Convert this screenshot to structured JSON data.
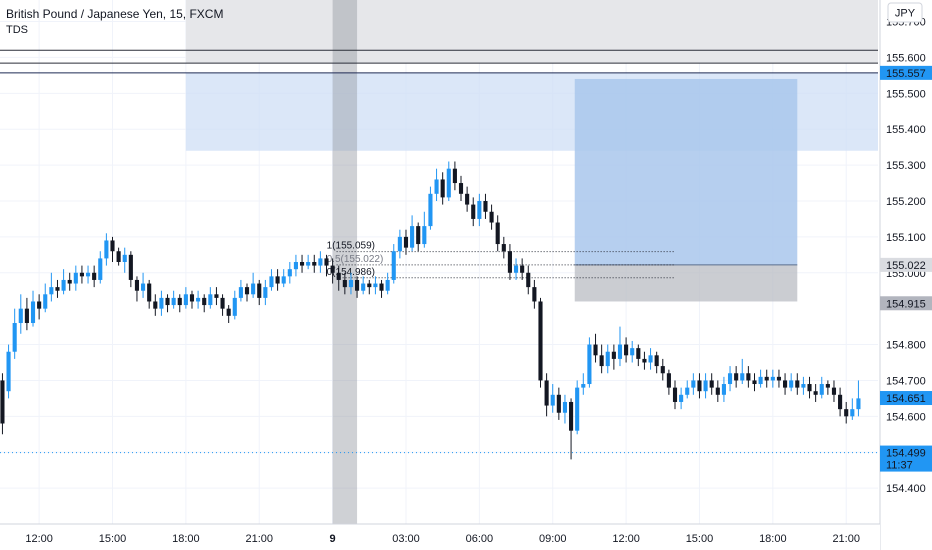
{
  "header": {
    "symbol_line": "British Pound / Japanese Yen, 15, FXCM",
    "indicator": "TDS"
  },
  "currency_button": "JPY",
  "colors": {
    "up": "#2196f3",
    "down": "#131722",
    "zone_fill": "#cfdff5",
    "target_fill": "#a9c7ec",
    "stop_fill": "#b9bcc3",
    "session_band": "#9598a1",
    "last_price_label": "#2196f3",
    "grid": "#f0f3fa"
  },
  "chart_data": {
    "type": "candlestick",
    "title": "British Pound / Japanese Yen, 15, FXCM",
    "y_axis": {
      "range": [
        154.3,
        155.76
      ],
      "ticks": [
        "154.400",
        "154.500",
        "154.600",
        "154.700",
        "154.800",
        "155.000",
        "155.100",
        "155.200",
        "155.300",
        "155.400",
        "155.500",
        "155.600",
        "155.700"
      ],
      "tick_values": [
        154.4,
        154.5,
        154.6,
        154.7,
        154.8,
        155.0,
        155.1,
        155.2,
        155.3,
        155.4,
        155.5,
        155.6,
        155.7
      ]
    },
    "x_axis": {
      "ticks": [
        "12:00",
        "15:00",
        "18:00",
        "21:00",
        "9",
        "03:00",
        "06:00",
        "09:00",
        "12:00",
        "15:00",
        "18:00",
        "21:00"
      ],
      "tick_positions": [
        12,
        15,
        18,
        21,
        24,
        27,
        30,
        33,
        36,
        39,
        42,
        45
      ]
    },
    "x_range": [
      10.4,
      46.3
    ],
    "price_labels": [
      {
        "value": 155.557,
        "text": "155.557",
        "style": "blue"
      },
      {
        "value": 155.022,
        "text": "155.022",
        "style": "gray"
      },
      {
        "value": 154.915,
        "text": "154.915",
        "style": "dark"
      },
      {
        "value": 154.651,
        "text": "154.651",
        "style": "blue"
      },
      {
        "value": 154.499,
        "text": "154.499",
        "style": "blue",
        "sub": "11:37"
      }
    ],
    "horizontal_lines": [
      155.62,
      155.584,
      155.557
    ],
    "last_price_line": 154.499,
    "zones": [
      {
        "kind": "supply",
        "x0": 18.0,
        "x1": 46.3,
        "y0": 155.34,
        "y1": 155.557
      },
      {
        "kind": "target",
        "x0": 33.9,
        "x1": 43.0,
        "y0": 155.022,
        "y1": 155.54
      },
      {
        "kind": "stop",
        "x0": 33.9,
        "x1": 43.0,
        "y0": 154.92,
        "y1": 155.022
      }
    ],
    "session_band": {
      "x0": 24.0,
      "x1": 25.0
    },
    "fib": {
      "x0": 24.0,
      "x1": 38.0,
      "levels": [
        {
          "label": "1(155.059)",
          "value": 155.059
        },
        {
          "label": "0.5(155.022)",
          "value": 155.022
        },
        {
          "label": "0(154.986)",
          "value": 154.986
        }
      ]
    },
    "candles": [
      [
        10.5,
        154.7,
        154.58,
        154.72,
        154.55
      ],
      [
        10.75,
        154.67,
        154.78,
        154.8,
        154.65
      ],
      [
        11.0,
        154.78,
        154.86,
        154.9,
        154.76
      ],
      [
        11.25,
        154.86,
        154.9,
        154.94,
        154.83
      ],
      [
        11.5,
        154.9,
        154.86,
        154.93,
        154.84
      ],
      [
        11.75,
        154.86,
        154.92,
        154.95,
        154.85
      ],
      [
        12.0,
        154.92,
        154.9,
        154.94,
        154.87
      ],
      [
        12.25,
        154.9,
        154.94,
        154.97,
        154.89
      ],
      [
        12.5,
        154.94,
        154.96,
        155.0,
        154.92
      ],
      [
        12.75,
        154.96,
        154.95,
        154.98,
        154.93
      ],
      [
        13.0,
        154.95,
        154.98,
        155.01,
        154.94
      ],
      [
        13.25,
        154.98,
        154.97,
        155.0,
        154.95
      ],
      [
        13.5,
        154.97,
        155.0,
        155.02,
        154.95
      ],
      [
        13.75,
        155.0,
        154.99,
        155.02,
        154.97
      ],
      [
        14.0,
        154.99,
        155.0,
        155.02,
        154.97
      ],
      [
        14.25,
        155.0,
        154.98,
        155.02,
        154.96
      ],
      [
        14.5,
        154.98,
        155.04,
        155.06,
        154.97
      ],
      [
        14.75,
        155.04,
        155.09,
        155.11,
        155.02
      ],
      [
        15.0,
        155.09,
        155.06,
        155.1,
        155.03
      ],
      [
        15.25,
        155.06,
        155.03,
        155.07,
        155.02
      ],
      [
        15.5,
        155.03,
        155.05,
        155.07,
        155.0
      ],
      [
        15.75,
        155.05,
        154.98,
        155.06,
        154.96
      ],
      [
        16.0,
        154.98,
        154.95,
        154.99,
        154.92
      ],
      [
        16.25,
        154.95,
        154.97,
        155.0,
        154.93
      ],
      [
        16.5,
        154.97,
        154.92,
        154.98,
        154.9
      ],
      [
        16.75,
        154.92,
        154.9,
        154.94,
        154.88
      ],
      [
        17.0,
        154.9,
        154.93,
        154.95,
        154.88
      ],
      [
        17.25,
        154.93,
        154.91,
        154.94,
        154.89
      ],
      [
        17.5,
        154.91,
        154.93,
        154.95,
        154.9
      ],
      [
        17.75,
        154.93,
        154.91,
        154.94,
        154.89
      ],
      [
        18.0,
        154.91,
        154.94,
        154.96,
        154.9
      ],
      [
        18.25,
        154.94,
        154.92,
        154.95,
        154.9
      ],
      [
        18.5,
        154.92,
        154.93,
        154.95,
        154.9
      ],
      [
        18.75,
        154.93,
        154.91,
        154.94,
        154.89
      ],
      [
        19.0,
        154.91,
        154.94,
        154.96,
        154.9
      ],
      [
        19.25,
        154.94,
        154.93,
        154.96,
        154.91
      ],
      [
        19.5,
        154.93,
        154.9,
        154.94,
        154.88
      ],
      [
        19.75,
        154.9,
        154.88,
        154.91,
        154.86
      ],
      [
        20.0,
        154.88,
        154.93,
        154.95,
        154.87
      ],
      [
        20.25,
        154.93,
        154.96,
        154.98,
        154.92
      ],
      [
        20.5,
        154.96,
        154.94,
        154.97,
        154.92
      ],
      [
        20.75,
        154.94,
        154.97,
        155.0,
        154.93
      ],
      [
        21.0,
        154.97,
        154.93,
        154.98,
        154.91
      ],
      [
        21.25,
        154.93,
        154.96,
        154.98,
        154.91
      ],
      [
        21.5,
        154.96,
        154.99,
        155.01,
        154.95
      ],
      [
        21.75,
        154.99,
        154.97,
        155.01,
        154.95
      ],
      [
        22.0,
        154.97,
        154.99,
        155.01,
        154.96
      ],
      [
        22.25,
        154.99,
        155.01,
        155.03,
        154.97
      ],
      [
        22.5,
        155.01,
        155.03,
        155.05,
        154.99
      ],
      [
        22.75,
        155.03,
        155.02,
        155.05,
        155.0
      ],
      [
        23.0,
        155.02,
        155.03,
        155.05,
        155.01
      ],
      [
        23.25,
        155.03,
        155.02,
        155.05,
        155.0
      ],
      [
        23.5,
        155.02,
        155.04,
        155.06,
        155.0
      ],
      [
        23.75,
        155.04,
        155.02,
        155.05,
        154.99
      ],
      [
        24.0,
        155.02,
        155.0,
        155.04,
        154.97
      ],
      [
        24.25,
        155.0,
        154.98,
        155.02,
        154.95
      ],
      [
        24.5,
        154.98,
        154.96,
        155.0,
        154.94
      ],
      [
        24.75,
        154.96,
        154.98,
        155.0,
        154.94
      ],
      [
        25.0,
        154.98,
        154.95,
        154.99,
        154.93
      ],
      [
        25.25,
        154.95,
        154.97,
        154.99,
        154.94
      ],
      [
        25.5,
        154.97,
        154.96,
        154.98,
        154.94
      ],
      [
        25.75,
        154.96,
        154.97,
        154.99,
        154.94
      ],
      [
        26.0,
        154.97,
        154.95,
        154.98,
        154.93
      ],
      [
        26.25,
        154.95,
        154.98,
        155.0,
        154.94
      ],
      [
        26.5,
        154.98,
        155.06,
        155.08,
        154.97
      ],
      [
        26.75,
        155.06,
        155.1,
        155.12,
        155.04
      ],
      [
        27.0,
        155.1,
        155.07,
        155.12,
        155.05
      ],
      [
        27.25,
        155.07,
        155.13,
        155.16,
        155.06
      ],
      [
        27.5,
        155.13,
        155.08,
        155.14,
        155.06
      ],
      [
        27.75,
        155.08,
        155.13,
        155.17,
        155.07
      ],
      [
        28.0,
        155.13,
        155.22,
        155.24,
        155.12
      ],
      [
        28.25,
        155.22,
        155.26,
        155.29,
        155.2
      ],
      [
        28.5,
        155.26,
        155.21,
        155.28,
        155.19
      ],
      [
        28.75,
        155.21,
        155.29,
        155.31,
        155.2
      ],
      [
        29.0,
        155.29,
        155.25,
        155.31,
        155.23
      ],
      [
        29.25,
        155.25,
        155.22,
        155.27,
        155.2
      ],
      [
        29.5,
        155.22,
        155.19,
        155.24,
        155.17
      ],
      [
        29.75,
        155.19,
        155.15,
        155.21,
        155.13
      ],
      [
        30.0,
        155.15,
        155.2,
        155.22,
        155.13
      ],
      [
        30.25,
        155.2,
        155.17,
        155.22,
        155.15
      ],
      [
        30.5,
        155.17,
        155.14,
        155.19,
        155.12
      ],
      [
        30.75,
        155.14,
        155.08,
        155.16,
        155.06
      ],
      [
        31.0,
        155.08,
        155.06,
        155.1,
        155.04
      ],
      [
        31.25,
        155.06,
        155.0,
        155.08,
        154.98
      ],
      [
        31.5,
        155.0,
        155.02,
        155.04,
        154.98
      ],
      [
        31.75,
        155.02,
        155.0,
        155.04,
        154.98
      ],
      [
        32.0,
        155.0,
        154.96,
        155.02,
        154.94
      ],
      [
        32.25,
        154.96,
        154.92,
        154.98,
        154.9
      ],
      [
        32.5,
        154.92,
        154.7,
        154.93,
        154.68
      ],
      [
        32.75,
        154.7,
        154.63,
        154.72,
        154.6
      ],
      [
        33.0,
        154.63,
        154.66,
        154.69,
        154.61
      ],
      [
        33.25,
        154.66,
        154.61,
        154.68,
        154.59
      ],
      [
        33.5,
        154.61,
        154.64,
        154.66,
        154.58
      ],
      [
        33.75,
        154.64,
        154.56,
        154.65,
        154.48
      ],
      [
        34.0,
        154.56,
        154.68,
        154.7,
        154.55
      ],
      [
        34.25,
        154.68,
        154.69,
        154.72,
        154.66
      ],
      [
        34.5,
        154.69,
        154.8,
        154.82,
        154.68
      ],
      [
        34.75,
        154.8,
        154.77,
        154.83,
        154.75
      ],
      [
        35.0,
        154.77,
        154.74,
        154.8,
        154.72
      ],
      [
        35.25,
        154.74,
        154.78,
        154.8,
        154.72
      ],
      [
        35.5,
        154.78,
        154.76,
        154.8,
        154.73
      ],
      [
        35.75,
        154.76,
        154.8,
        154.85,
        154.74
      ],
      [
        36.0,
        154.8,
        154.77,
        154.82,
        154.75
      ],
      [
        36.25,
        154.77,
        154.79,
        154.81,
        154.75
      ],
      [
        36.5,
        154.79,
        154.76,
        154.8,
        154.74
      ],
      [
        36.75,
        154.76,
        154.75,
        154.78,
        154.73
      ],
      [
        37.0,
        154.75,
        154.77,
        154.79,
        154.73
      ],
      [
        37.25,
        154.77,
        154.74,
        154.78,
        154.72
      ],
      [
        37.5,
        154.74,
        154.72,
        154.76,
        154.7
      ],
      [
        37.75,
        154.72,
        154.68,
        154.73,
        154.66
      ],
      [
        38.0,
        154.68,
        154.64,
        154.7,
        154.62
      ],
      [
        38.25,
        154.64,
        154.66,
        154.68,
        154.62
      ],
      [
        38.5,
        154.66,
        154.68,
        154.7,
        154.65
      ],
      [
        38.75,
        154.68,
        154.7,
        154.72,
        154.66
      ],
      [
        39.0,
        154.7,
        154.67,
        154.72,
        154.65
      ],
      [
        39.25,
        154.67,
        154.7,
        154.72,
        154.65
      ],
      [
        39.5,
        154.7,
        154.68,
        154.72,
        154.66
      ],
      [
        39.75,
        154.68,
        154.66,
        154.7,
        154.64
      ],
      [
        40.0,
        154.66,
        154.69,
        154.71,
        154.64
      ],
      [
        40.25,
        154.69,
        154.72,
        154.74,
        154.67
      ],
      [
        40.5,
        154.72,
        154.7,
        154.74,
        154.68
      ],
      [
        40.75,
        154.7,
        154.72,
        154.76,
        154.69
      ],
      [
        41.0,
        154.72,
        154.7,
        154.74,
        154.68
      ],
      [
        41.25,
        154.7,
        154.69,
        154.72,
        154.67
      ],
      [
        41.5,
        154.69,
        154.71,
        154.73,
        154.68
      ],
      [
        41.75,
        154.71,
        154.7,
        154.73,
        154.68
      ],
      [
        42.0,
        154.7,
        154.71,
        154.73,
        154.68
      ],
      [
        42.25,
        154.71,
        154.7,
        154.73,
        154.68
      ],
      [
        42.5,
        154.7,
        154.68,
        154.72,
        154.66
      ],
      [
        42.75,
        154.68,
        154.7,
        154.72,
        154.67
      ],
      [
        43.0,
        154.7,
        154.68,
        154.72,
        154.66
      ],
      [
        43.25,
        154.68,
        154.69,
        154.71,
        154.66
      ],
      [
        43.5,
        154.69,
        154.67,
        154.71,
        154.65
      ],
      [
        43.75,
        154.67,
        154.66,
        154.69,
        154.64
      ],
      [
        44.0,
        154.66,
        154.69,
        154.71,
        154.65
      ],
      [
        44.25,
        154.69,
        154.68,
        154.7,
        154.66
      ],
      [
        44.5,
        154.68,
        154.66,
        154.7,
        154.64
      ],
      [
        44.75,
        154.66,
        154.62,
        154.68,
        154.6
      ],
      [
        45.0,
        154.62,
        154.6,
        154.64,
        154.58
      ],
      [
        45.25,
        154.6,
        154.62,
        154.65,
        154.59
      ],
      [
        45.5,
        154.62,
        154.65,
        154.7,
        154.6
      ]
    ]
  }
}
